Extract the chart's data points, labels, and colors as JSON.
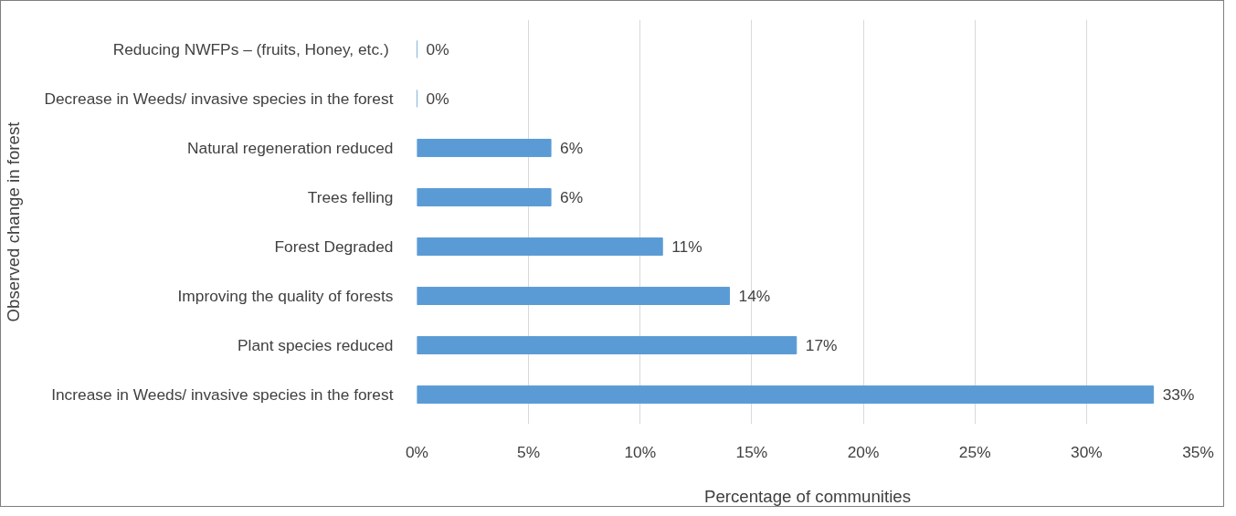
{
  "chart_data": {
    "type": "bar",
    "orientation": "horizontal",
    "xlabel": "Percentage of communities",
    "ylabel": "Observed change in forest",
    "categories": [
      "Reducing NWFPs  – (fruits, Honey, etc.)",
      "Decrease in Weeds/ invasive species in the forest",
      "Natural regeneration reduced",
      "Trees felling",
      "Forest Degraded",
      "Improving the quality of forests",
      "Plant species reduced",
      "Increase in Weeds/ invasive species in the forest"
    ],
    "values": [
      0,
      0,
      6,
      6,
      11,
      14,
      17,
      33
    ],
    "value_labels": [
      "0%",
      "0%",
      "6%",
      "6%",
      "11%",
      "14%",
      "17%",
      "33%"
    ],
    "color": "#5b9bd5",
    "xlim": [
      0,
      35
    ],
    "xticks": [
      {
        "value": 0,
        "label": "0%"
      },
      {
        "value": 5,
        "label": "5%"
      },
      {
        "value": 10,
        "label": "10%"
      },
      {
        "value": 15,
        "label": "15%"
      },
      {
        "value": 20,
        "label": "20%"
      },
      {
        "value": 25,
        "label": "25%"
      },
      {
        "value": 30,
        "label": "30%"
      },
      {
        "value": 35,
        "label": "35%"
      }
    ],
    "grid": "x"
  }
}
